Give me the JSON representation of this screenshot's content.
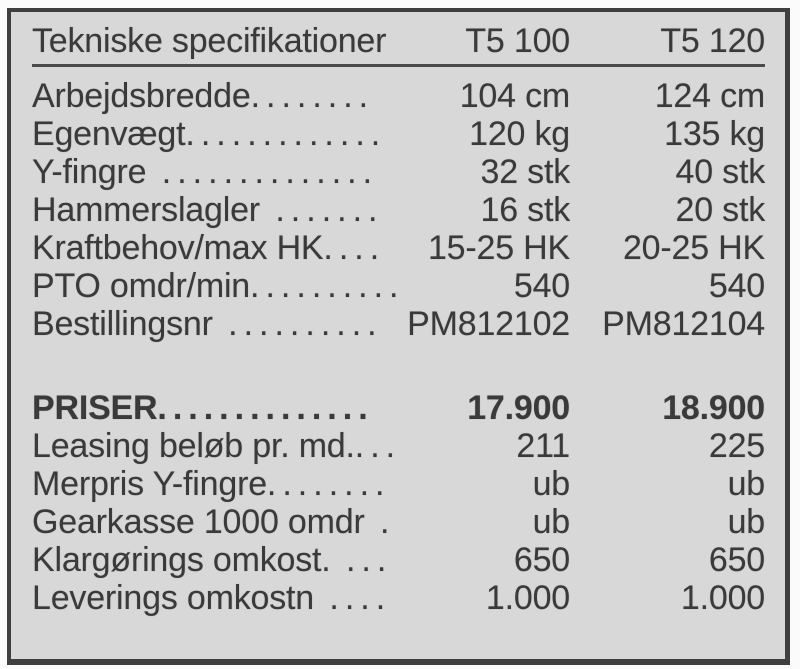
{
  "panel": {
    "header": {
      "title": "Tekniske specifikationer",
      "model_1": "T5 100",
      "model_2": "T5 120"
    },
    "spec_rows": [
      {
        "label": "Arbejdsbredde",
        "dots": "........",
        "v1": "104 cm",
        "v2": "124 cm"
      },
      {
        "label": "Egenvægt",
        "dots": ".............",
        "v1": "120 kg",
        "v2": "135 kg"
      },
      {
        "label": "Y-fingre",
        "dots": " ..............",
        "v1": "32 stk",
        "v2": "40 stk"
      },
      {
        "label": "Hammerslagler",
        "dots": " .......",
        "v1": "16 stk",
        "v2": "20 stk"
      },
      {
        "label": "Kraftbehov/max HK",
        "dots": "....",
        "v1": "15-25 HK",
        "v2": "20-25 HK"
      },
      {
        "label": "PTO omdr/min",
        "dots": "..........",
        "v1": "540",
        "v2": "540"
      },
      {
        "label": "Bestillingsnr",
        "dots": " ..........",
        "v1": "PM812102",
        "v2": "PM812104"
      }
    ],
    "price_rows": [
      {
        "label": "PRISER",
        "dots": "..............",
        "v1": "17.900",
        "v2": "18.900",
        "bold": true
      },
      {
        "label": "Leasing beløb pr. md.",
        "dots": "...",
        "v1": "211",
        "v2": "225"
      },
      {
        "label": "Merpris Y-fingre",
        "dots": "........",
        "v1": "ub",
        "v2": "ub"
      },
      {
        "label": "Gearkasse 1000 omdr",
        "dots": " .",
        "v1": "ub",
        "v2": "ub"
      },
      {
        "label": "Klargørings omkost.",
        "dots": " ...",
        "v1": "650",
        "v2": "650"
      },
      {
        "label": "Leverings omkostn",
        "dots": " ....",
        "v1": "1.000",
        "v2": "1.000"
      }
    ]
  },
  "colors": {
    "page_bg": "#fbfbfb",
    "panel_bg": "#d8d8d8",
    "border": "#3f3f3f",
    "text": "#3a3a3a",
    "rule": "#4a4a4a"
  }
}
